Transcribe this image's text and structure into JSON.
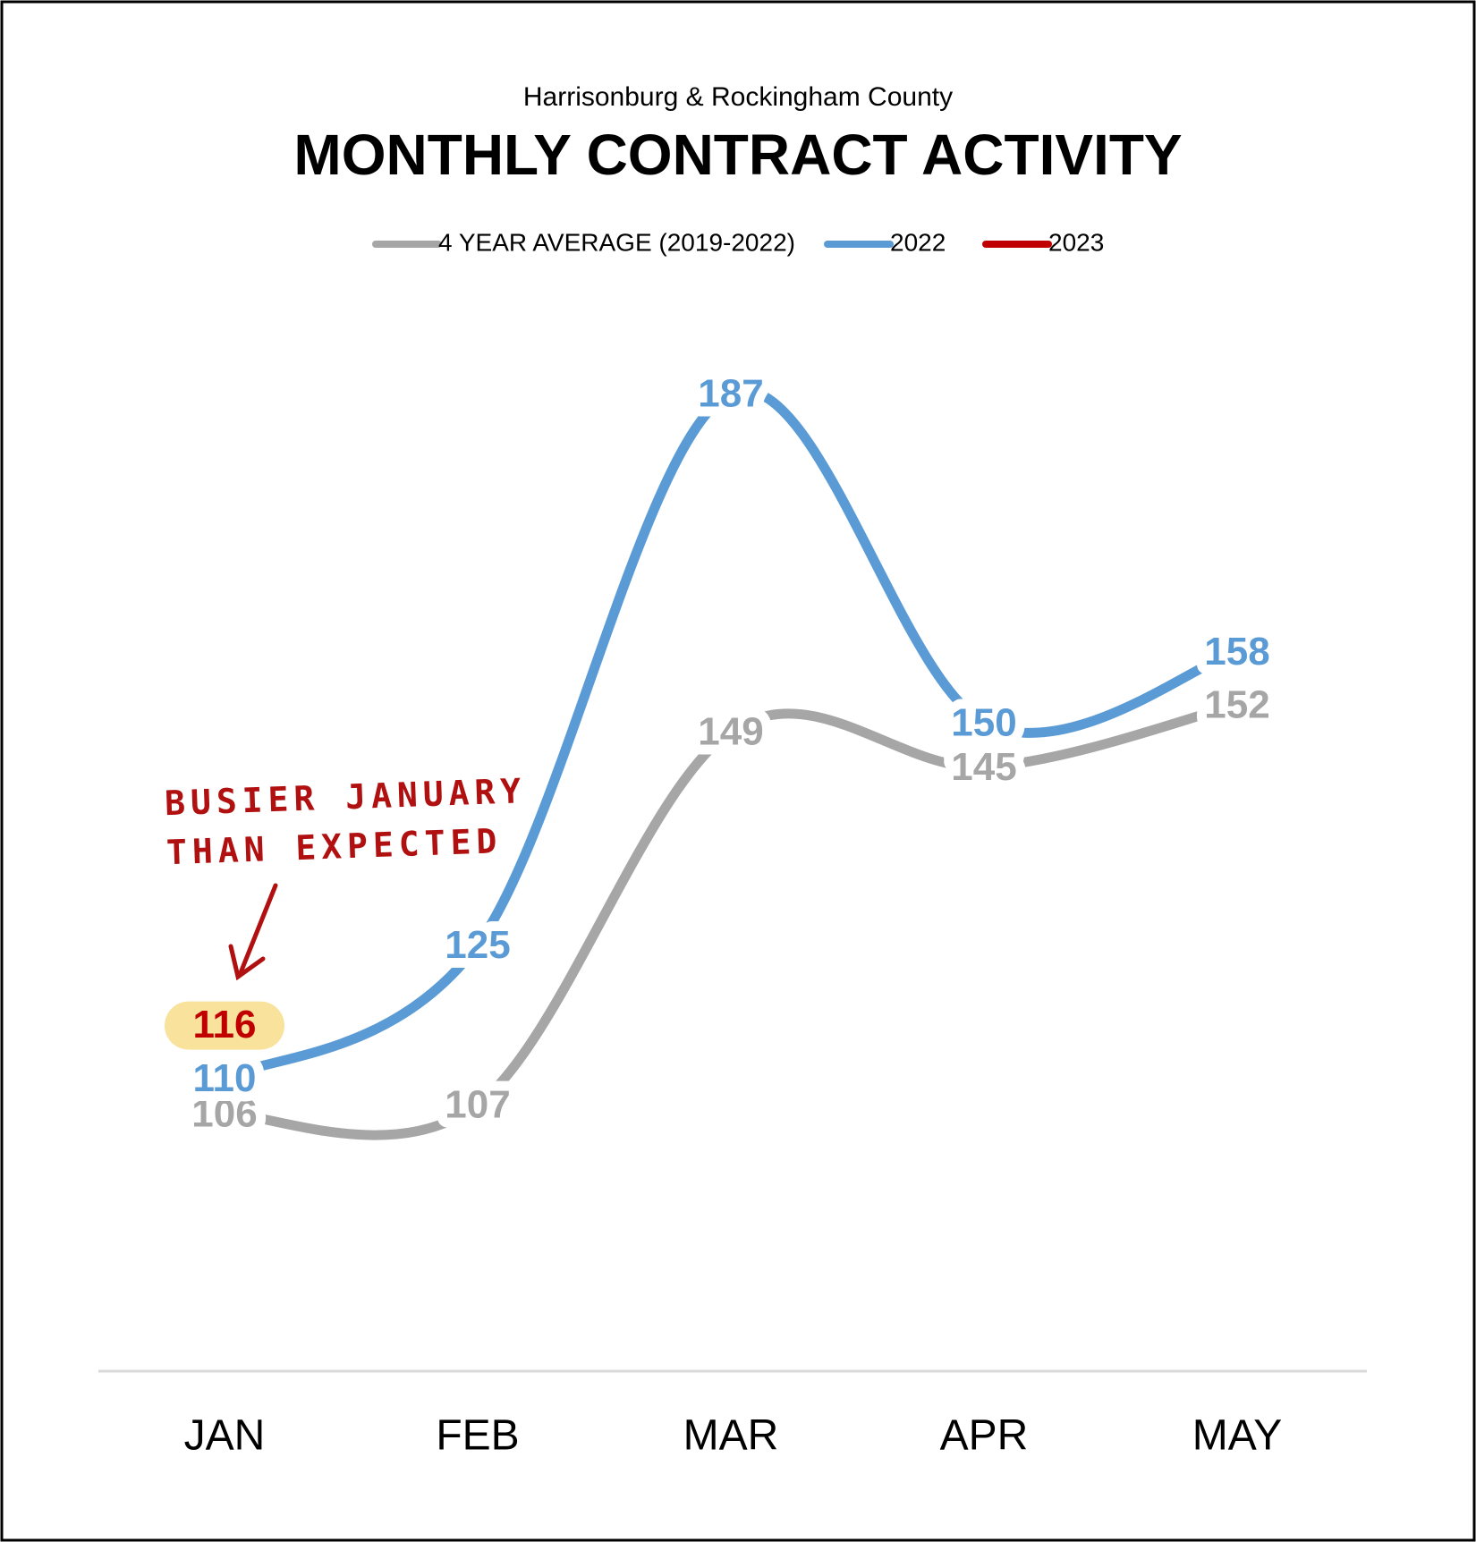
{
  "chart_data": {
    "type": "line",
    "subtitle": "Harrisonburg & Rockingham County",
    "title": "MONTHLY CONTRACT ACTIVITY",
    "categories": [
      "JAN",
      "FEB",
      "MAR",
      "APR",
      "MAY"
    ],
    "series": [
      {
        "name": "4 YEAR AVERAGE (2019-2022)",
        "color": "#a6a6a6",
        "values": [
          106,
          107,
          149,
          145,
          152
        ]
      },
      {
        "name": "2022",
        "color": "#5b9bd5",
        "values": [
          110,
          125,
          187,
          150,
          158
        ]
      },
      {
        "name": "2023",
        "color": "#c00000",
        "values": [
          116,
          null,
          null,
          null,
          null
        ]
      }
    ],
    "annotation": [
      "BUSIER JANUARY",
      "THAN EXPECTED"
    ],
    "highlight_color": "#f9e29c"
  }
}
